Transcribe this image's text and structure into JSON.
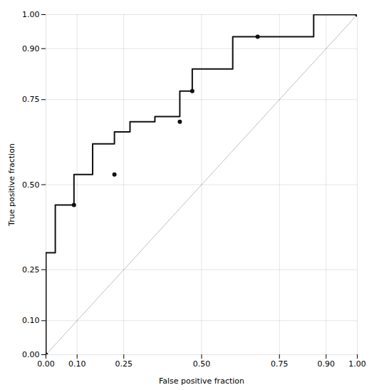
{
  "chart_data": {
    "type": "line",
    "x_label": "False positive fraction",
    "y_label": "True positive fraction",
    "xlim": [
      0.0,
      1.0
    ],
    "ylim": [
      0.0,
      1.0
    ],
    "xticks": [
      {
        "value": 0.0,
        "label": "0.00"
      },
      {
        "value": 0.1,
        "label": "0.10"
      },
      0.25,
      {
        "value": 0.5,
        "label": "0.50"
      },
      0.75,
      {
        "value": 0.9,
        "label": "0.90"
      },
      {
        "value": 1.0,
        "label": "1.00"
      }
    ],
    "yticks": [
      {
        "value": 0.0,
        "label": "0.00"
      },
      {
        "value": 0.1,
        "label": "0.10"
      },
      0.25,
      {
        "value": 0.5,
        "label": "0.50"
      },
      0.75,
      {
        "value": 0.9,
        "label": "0.90"
      },
      {
        "value": 1.0,
        "label": "1.00"
      }
    ],
    "grid": true,
    "series": [
      {
        "type": "line",
        "color": "#111111",
        "x": [
          0.0,
          0.0,
          0.03,
          0.03,
          0.09,
          0.09,
          0.15,
          0.15,
          0.22,
          0.22,
          0.27,
          0.27,
          0.35,
          0.35,
          0.43,
          0.43,
          0.47,
          0.47,
          0.6,
          0.6,
          0.68,
          0.68,
          0.8,
          0.86,
          0.86,
          0.97,
          1.0
        ],
        "values": [
          0.0,
          0.3,
          0.3,
          0.44,
          0.44,
          0.53,
          0.53,
          0.62,
          0.62,
          0.655,
          0.655,
          0.685,
          0.685,
          0.7,
          0.7,
          0.775,
          0.775,
          0.84,
          0.84,
          0.935,
          0.935,
          0.935,
          0.935,
          0.935,
          1.0,
          1.0,
          1.0
        ]
      },
      {
        "type": "scatter",
        "color": "#111111",
        "x": [
          0.0,
          0.09,
          0.22,
          0.43,
          0.47,
          0.68,
          1.0
        ],
        "values": [
          0.0,
          0.44,
          0.53,
          0.685,
          0.775,
          0.935,
          1.0
        ]
      }
    ]
  }
}
